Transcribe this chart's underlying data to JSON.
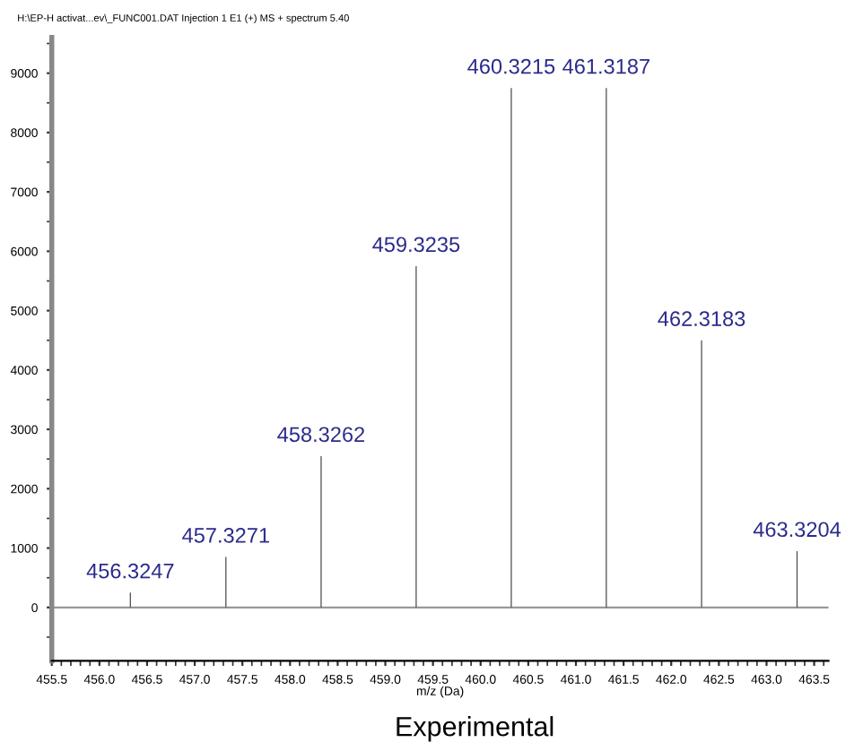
{
  "chart_data": {
    "type": "bar",
    "title": "Experimental",
    "xlabel": "m/z (Da)",
    "x": [
      456.3247,
      457.3271,
      458.3262,
      459.3235,
      460.3215,
      461.3187,
      462.3183,
      463.3204
    ],
    "values": [
      250,
      850,
      2550,
      5750,
      8750,
      8750,
      4500,
      950
    ],
    "ref_lines": [
      {
        "axis": "y",
        "value": 0,
        "color": "#999999"
      }
    ],
    "color": "#505050",
    "annotations": [
      "H:\\EP-H activat...ev\\_FUNC001.DAT Injection 1 E1 (+) MS + spectrum 5.40",
      {
        "text": "456.3247",
        "x": 456.3247,
        "y": 250
      },
      {
        "text": "457.3271",
        "x": 457.3271,
        "y": 850
      },
      {
        "text": "458.3262",
        "x": 458.3262,
        "y": 2550
      },
      {
        "text": "459.3235",
        "x": 459.3235,
        "y": 5750
      },
      {
        "text": "460.3215",
        "x": 460.3215,
        "y": 8750
      },
      {
        "text": "461.3187",
        "x": 461.3187,
        "y": 8750
      },
      {
        "text": "462.3183",
        "x": 462.3183,
        "y": 4500
      },
      {
        "text": "463.3204",
        "x": 463.3204,
        "y": 950
      }
    ],
    "xlim": [
      455.5,
      463.65
    ],
    "ylim": [
      -900,
      9600
    ],
    "xticks": [
      455.5,
      {
        "value": 456,
        "label": "456.0"
      },
      456.5,
      {
        "value": 457,
        "label": "457.0"
      },
      457.5,
      {
        "value": 458,
        "label": "458.0"
      },
      458.5,
      {
        "value": 459,
        "label": "459.0"
      },
      459.5,
      {
        "value": 460,
        "label": "460.0"
      },
      460.5,
      {
        "value": 461,
        "label": "461.0"
      },
      461.5,
      {
        "value": 462,
        "label": "462.0"
      },
      462.5,
      {
        "value": 463,
        "label": "463.0"
      },
      463.5
    ],
    "yticks": [
      0,
      1000,
      2000,
      3000,
      4000,
      5000,
      6000,
      7000,
      8000,
      9000
    ],
    "grid": false,
    "legend": false
  }
}
